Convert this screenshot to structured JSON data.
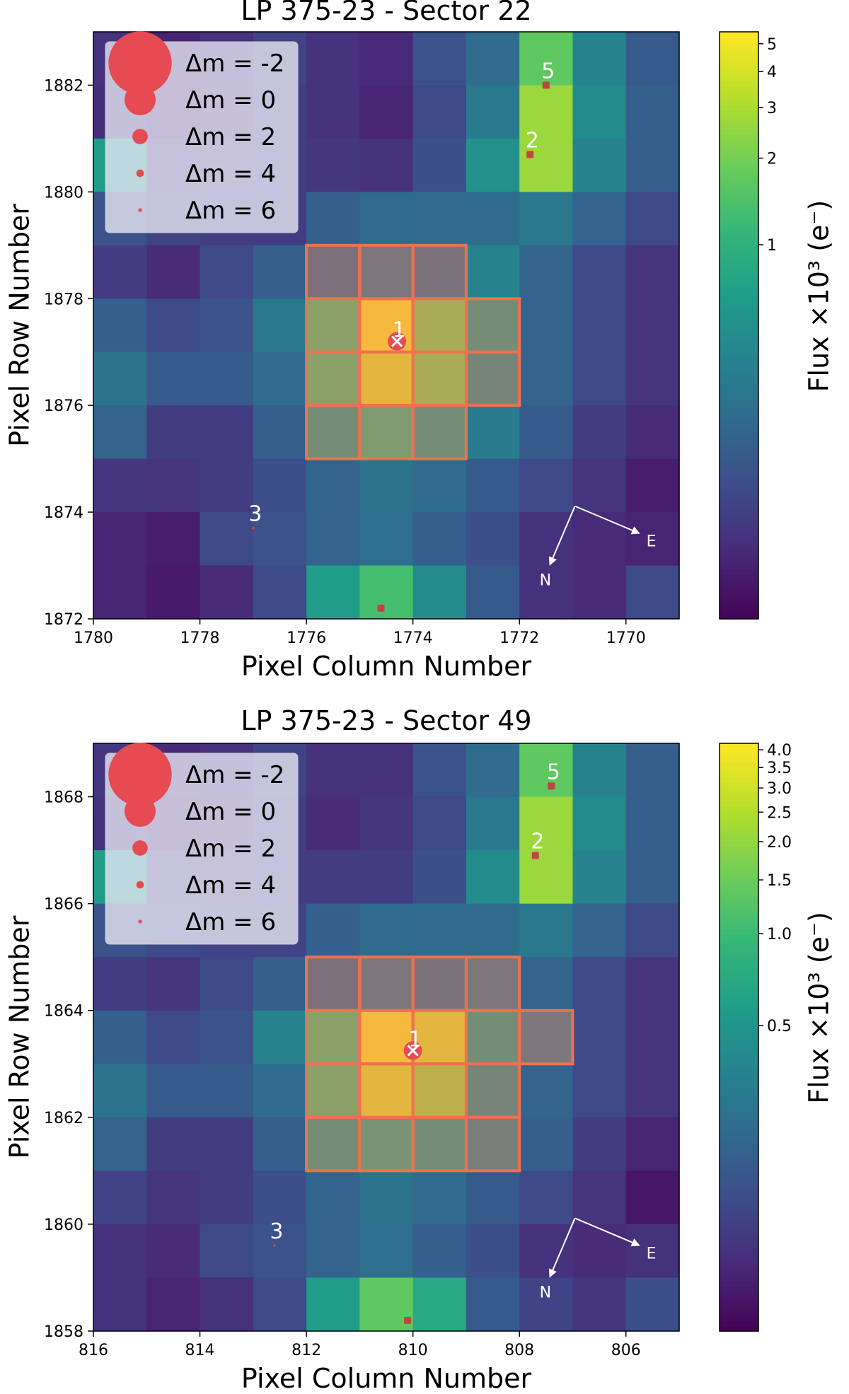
{
  "colors": {
    "aperture": "#f07050",
    "star_marker": "#e64a52",
    "target_cross": "#ffffff",
    "label_text": "#ffffff",
    "colormap": "viridis"
  },
  "chart_data": [
    {
      "type": "heatmap",
      "title": "LP 375-23 - Sector 22",
      "xlabel": "Pixel Column Number",
      "ylabel": "Pixel Row Number",
      "colorbar_label": "Flux ×10³ (e⁻)",
      "xlim": [
        1780,
        1769
      ],
      "ylim": [
        1872,
        1883
      ],
      "x_ticks": [
        "1780",
        "1778",
        "1776",
        "1774",
        "1772",
        "1770"
      ],
      "y_ticks": [
        "1872",
        "1874",
        "1876",
        "1878",
        "1880",
        "1882"
      ],
      "colorbar_scale": "log",
      "colorbar_range": [
        0.05,
        5.5
      ],
      "colorbar_ticks": [
        "5",
        "4",
        "3",
        "2",
        "1"
      ],
      "grid_levels": [
        [
          0.14,
          0.1,
          0.14,
          0.2,
          0.14,
          0.11,
          0.25,
          0.35,
          0.75,
          0.45,
          0.28
        ],
        [
          0.13,
          0.09,
          0.12,
          0.18,
          0.14,
          0.1,
          0.22,
          0.4,
          0.85,
          0.48,
          0.3
        ],
        [
          0.55,
          0.15,
          0.16,
          0.18,
          0.16,
          0.14,
          0.24,
          0.5,
          0.85,
          0.45,
          0.3
        ],
        [
          0.25,
          0.2,
          0.18,
          0.18,
          0.3,
          0.35,
          0.35,
          0.35,
          0.4,
          0.32,
          0.22
        ],
        [
          0.18,
          0.12,
          0.22,
          0.3,
          0.35,
          0.4,
          0.38,
          0.45,
          0.32,
          0.22,
          0.15
        ],
        [
          0.3,
          0.22,
          0.25,
          0.4,
          0.7,
          1.0,
          0.8,
          0.55,
          0.32,
          0.22,
          0.15
        ],
        [
          0.38,
          0.28,
          0.28,
          0.35,
          0.7,
          0.95,
          0.8,
          0.5,
          0.32,
          0.22,
          0.15
        ],
        [
          0.32,
          0.18,
          0.18,
          0.3,
          0.55,
          0.65,
          0.55,
          0.42,
          0.28,
          0.18,
          0.12
        ],
        [
          0.16,
          0.15,
          0.18,
          0.24,
          0.32,
          0.38,
          0.35,
          0.28,
          0.22,
          0.15,
          0.08
        ],
        [
          0.1,
          0.08,
          0.22,
          0.25,
          0.32,
          0.36,
          0.3,
          0.24,
          0.14,
          0.12,
          0.1
        ],
        [
          0.1,
          0.07,
          0.12,
          0.22,
          0.55,
          0.7,
          0.48,
          0.28,
          0.14,
          0.12,
          0.22
        ]
      ],
      "aperture_pixels": [
        [
          1776,
          1878
        ],
        [
          1775,
          1878
        ],
        [
          1774,
          1878
        ],
        [
          1776,
          1877
        ],
        [
          1775,
          1877
        ],
        [
          1774,
          1877
        ],
        [
          1773,
          1877
        ],
        [
          1776,
          1876
        ],
        [
          1775,
          1876
        ],
        [
          1774,
          1876
        ],
        [
          1773,
          1876
        ],
        [
          1776,
          1875
        ],
        [
          1775,
          1875
        ],
        [
          1774,
          1875
        ]
      ],
      "stars": [
        {
          "label": "1",
          "x": 1774.3,
          "y": 1877.2,
          "dm": 0,
          "target": true
        },
        {
          "label": "2",
          "x": 1771.8,
          "y": 1880.7,
          "dm": 3
        },
        {
          "label": "3",
          "x": 1777.0,
          "y": 1873.7,
          "dm": 6
        },
        {
          "label": "5",
          "x": 1771.5,
          "y": 1882.0,
          "dm": 3
        },
        {
          "label": "",
          "x": 1774.6,
          "y": 1872.2,
          "dm": 3
        }
      ],
      "legend": {
        "position": "upper-left",
        "entries": [
          {
            "label": "Δm = -2",
            "dm": -2
          },
          {
            "label": "Δm = 0",
            "dm": 0
          },
          {
            "label": "Δm = 2",
            "dm": 2
          },
          {
            "label": "Δm = 4",
            "dm": 4
          },
          {
            "label": "Δm = 6",
            "dm": 6
          }
        ]
      },
      "compass": {
        "north": "N",
        "east": "E"
      }
    },
    {
      "type": "heatmap",
      "title": "LP 375-23 - Sector 49",
      "xlabel": "Pixel Column Number",
      "ylabel": "Pixel Row Number",
      "colorbar_label": "Flux ×10³ (e⁻)",
      "xlim": [
        816,
        805
      ],
      "ylim": [
        1858,
        1869
      ],
      "x_ticks": [
        "816",
        "814",
        "812",
        "810",
        "808",
        "806"
      ],
      "y_ticks": [
        "1858",
        "1860",
        "1862",
        "1864",
        "1866",
        "1868"
      ],
      "colorbar_scale": "log",
      "colorbar_range": [
        0.05,
        4.2
      ],
      "colorbar_ticks": [
        "4.0",
        "3.5",
        "3.0",
        "2.5",
        "2.0",
        "1.5",
        "1.0",
        "0.5"
      ],
      "grid_levels": [
        [
          0.16,
          0.12,
          0.14,
          0.2,
          0.14,
          0.14,
          0.25,
          0.35,
          0.75,
          0.45,
          0.3
        ],
        [
          0.14,
          0.1,
          0.12,
          0.18,
          0.12,
          0.16,
          0.22,
          0.4,
          0.85,
          0.48,
          0.3
        ],
        [
          0.55,
          0.18,
          0.16,
          0.18,
          0.18,
          0.18,
          0.24,
          0.48,
          0.85,
          0.45,
          0.3
        ],
        [
          0.25,
          0.22,
          0.2,
          0.2,
          0.3,
          0.35,
          0.35,
          0.35,
          0.4,
          0.32,
          0.22
        ],
        [
          0.18,
          0.15,
          0.22,
          0.3,
          0.35,
          0.4,
          0.38,
          0.4,
          0.32,
          0.22,
          0.15
        ],
        [
          0.3,
          0.22,
          0.25,
          0.45,
          0.7,
          1.0,
          0.95,
          0.55,
          0.4,
          0.22,
          0.15
        ],
        [
          0.38,
          0.28,
          0.28,
          0.35,
          0.7,
          0.95,
          0.85,
          0.5,
          0.32,
          0.22,
          0.15
        ],
        [
          0.32,
          0.18,
          0.18,
          0.3,
          0.55,
          0.6,
          0.55,
          0.45,
          0.3,
          0.18,
          0.1
        ],
        [
          0.2,
          0.15,
          0.18,
          0.24,
          0.32,
          0.38,
          0.35,
          0.28,
          0.22,
          0.15,
          0.06
        ],
        [
          0.14,
          0.12,
          0.22,
          0.25,
          0.32,
          0.36,
          0.3,
          0.24,
          0.14,
          0.12,
          0.14
        ],
        [
          0.14,
          0.1,
          0.14,
          0.22,
          0.55,
          0.75,
          0.6,
          0.28,
          0.2,
          0.16,
          0.24
        ]
      ],
      "aperture_pixels": [
        [
          812,
          1864
        ],
        [
          811,
          1864
        ],
        [
          810,
          1864
        ],
        [
          809,
          1864
        ],
        [
          812,
          1863
        ],
        [
          811,
          1863
        ],
        [
          810,
          1863
        ],
        [
          809,
          1863
        ],
        [
          808,
          1863
        ],
        [
          812,
          1862
        ],
        [
          811,
          1862
        ],
        [
          810,
          1862
        ],
        [
          809,
          1862
        ],
        [
          812,
          1861
        ],
        [
          811,
          1861
        ],
        [
          810,
          1861
        ],
        [
          809,
          1861
        ]
      ],
      "stars": [
        {
          "label": "1",
          "x": 810.0,
          "y": 1863.25,
          "dm": 0,
          "target": true
        },
        {
          "label": "2",
          "x": 807.7,
          "y": 1866.9,
          "dm": 3
        },
        {
          "label": "3",
          "x": 812.6,
          "y": 1859.6,
          "dm": 6
        },
        {
          "label": "5",
          "x": 807.4,
          "y": 1868.2,
          "dm": 3
        },
        {
          "label": "",
          "x": 810.1,
          "y": 1858.2,
          "dm": 3
        }
      ],
      "legend": {
        "position": "upper-left",
        "entries": [
          {
            "label": "Δm = -2",
            "dm": -2
          },
          {
            "label": "Δm = 0",
            "dm": 0
          },
          {
            "label": "Δm = 2",
            "dm": 2
          },
          {
            "label": "Δm = 4",
            "dm": 4
          },
          {
            "label": "Δm = 6",
            "dm": 6
          }
        ]
      },
      "compass": {
        "north": "N",
        "east": "E"
      }
    }
  ]
}
